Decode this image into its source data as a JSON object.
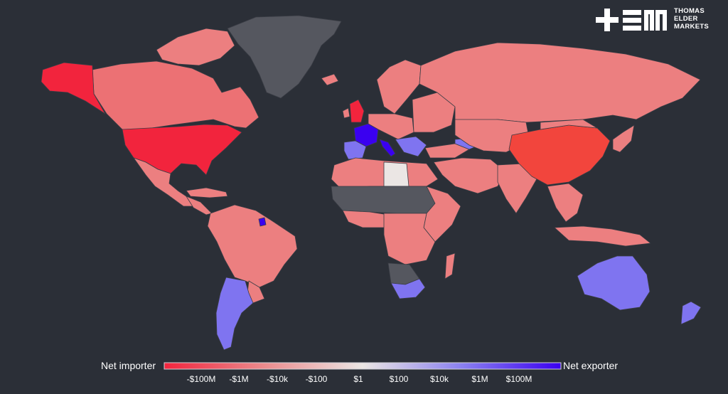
{
  "logo": {
    "mark": "+EM",
    "lines": [
      "THOMAS",
      "ELDER",
      "MARKETS"
    ]
  },
  "legend": {
    "left_label": "Net importer",
    "right_label": "Net exporter",
    "ticks": [
      "-$100M",
      "-$1M",
      "-$10k",
      "-$100",
      "$1",
      "$100",
      "$10k",
      "$1M",
      "$100M"
    ],
    "colors": {
      "importer_strong": "#f2243d",
      "importer_mid": "#ec7f80",
      "neutral": "#ebe6e4",
      "exporter_mid": "#7f74f0",
      "exporter_strong": "#3a00f0",
      "no_data": "#55575f"
    }
  },
  "map": {
    "projection": "world (Robinson-like)",
    "regions": [
      {
        "name": "Alaska",
        "category": "importer_strong"
      },
      {
        "name": "United States",
        "category": "importer_strong"
      },
      {
        "name": "Canada",
        "category": "importer"
      },
      {
        "name": "Greenland",
        "category": "no_data"
      },
      {
        "name": "Mexico",
        "category": "importer"
      },
      {
        "name": "Central America",
        "category": "importer"
      },
      {
        "name": "Caribbean",
        "category": "importer"
      },
      {
        "name": "South America (north)",
        "category": "importer"
      },
      {
        "name": "French Guiana",
        "category": "exporter_strong"
      },
      {
        "name": "Argentina / Chile",
        "category": "exporter"
      },
      {
        "name": "Uruguay",
        "category": "importer"
      },
      {
        "name": "Iceland",
        "category": "importer"
      },
      {
        "name": "United Kingdom",
        "category": "importer_strong"
      },
      {
        "name": "Ireland",
        "category": "importer"
      },
      {
        "name": "Scandinavia",
        "category": "importer"
      },
      {
        "name": "France",
        "category": "exporter_strong"
      },
      {
        "name": "Spain / Portugal",
        "category": "exporter"
      },
      {
        "name": "Italy",
        "category": "exporter_strong"
      },
      {
        "name": "Central Europe",
        "category": "importer"
      },
      {
        "name": "Eastern Europe",
        "category": "importer"
      },
      {
        "name": "Balkans",
        "category": "exporter"
      },
      {
        "name": "Russia",
        "category": "importer"
      },
      {
        "name": "Central Asia",
        "category": "importer"
      },
      {
        "name": "Middle East",
        "category": "importer"
      },
      {
        "name": "Caucasus",
        "category": "exporter"
      },
      {
        "name": "Turkey",
        "category": "importer"
      },
      {
        "name": "North Africa",
        "category": "importer"
      },
      {
        "name": "Libya",
        "category": "neutral"
      },
      {
        "name": "Sahel",
        "category": "no_data"
      },
      {
        "name": "West Africa",
        "category": "importer"
      },
      {
        "name": "Central Africa",
        "category": "importer"
      },
      {
        "name": "East Africa",
        "category": "importer"
      },
      {
        "name": "Angola / Zambia",
        "category": "importer"
      },
      {
        "name": "Namibia / Botswana",
        "category": "no_data"
      },
      {
        "name": "South Africa",
        "category": "exporter"
      },
      {
        "name": "Madagascar",
        "category": "importer"
      },
      {
        "name": "India",
        "category": "importer"
      },
      {
        "name": "China",
        "category": "importer_strong"
      },
      {
        "name": "Mongolia",
        "category": "importer"
      },
      {
        "name": "Southeast Asia",
        "category": "importer"
      },
      {
        "name": "Indonesia",
        "category": "importer"
      },
      {
        "name": "Japan / Korea",
        "category": "importer"
      },
      {
        "name": "Australia",
        "category": "exporter"
      },
      {
        "name": "New Zealand",
        "category": "exporter"
      }
    ]
  }
}
